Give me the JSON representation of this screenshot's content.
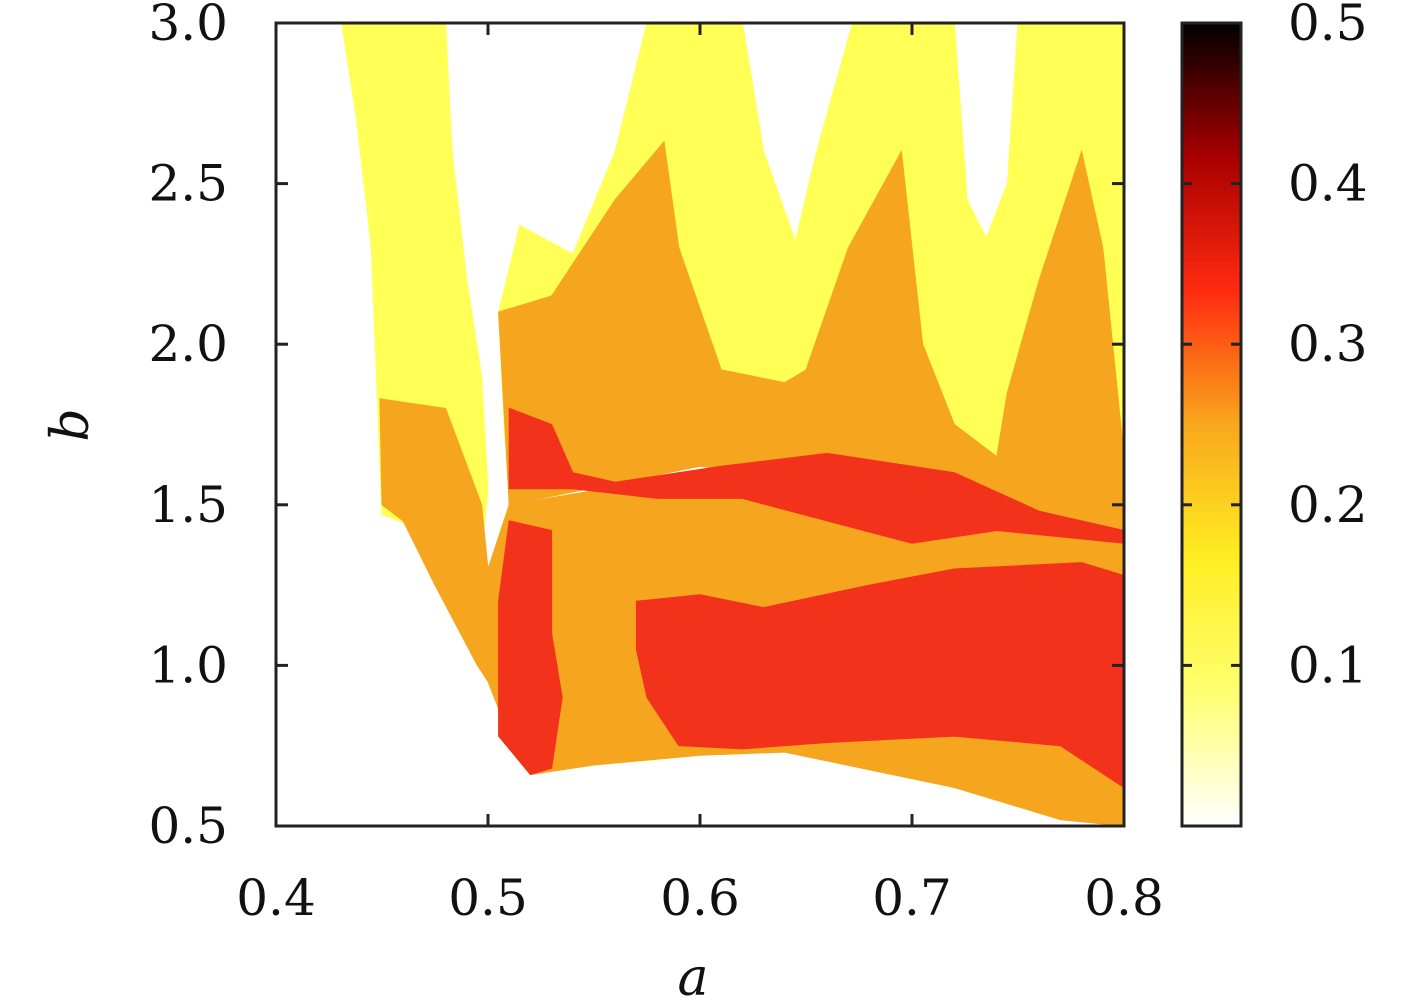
{
  "chart_data": {
    "type": "heatmap",
    "xlabel": "a",
    "ylabel": "b",
    "xlim": [
      0.4,
      0.8
    ],
    "ylim": [
      0.5,
      3.0
    ],
    "x_ticks": [
      "0.4",
      "0.5",
      "0.6",
      "0.7",
      "0.8"
    ],
    "y_ticks": [
      "0.5",
      "1.0",
      "1.5",
      "2.0",
      "2.5",
      "3.0"
    ],
    "colorbar": {
      "range": [
        0,
        0.5
      ],
      "ticks": [
        "0.1",
        "0.2",
        "0.3",
        "0.4",
        "0.5"
      ],
      "colormap": [
        "#ffffff",
        "#ffff70",
        "#ffee22",
        "#f9a71c",
        "#ff2a10",
        "#a80000",
        "#000000"
      ]
    },
    "level_colors": {
      "0.0": "#ffffff",
      "0.1": "#ffff55",
      "0.2": "#f6a51f",
      "0.3": "#f2321a"
    },
    "regions": [
      {
        "value": 0.1,
        "description": "yellow wavy band",
        "polygon": [
          [
            0.431,
            3.0
          ],
          [
            0.48,
            3.0
          ],
          [
            0.483,
            2.6
          ],
          [
            0.49,
            2.2
          ],
          [
            0.497,
            1.9
          ],
          [
            0.5,
            1.55
          ],
          [
            0.497,
            1.35
          ],
          [
            0.45,
            1.47
          ],
          [
            0.448,
            1.8
          ],
          [
            0.445,
            2.3
          ],
          [
            0.438,
            2.7
          ]
        ]
      },
      {
        "value": 0.1,
        "polygon": [
          [
            0.508,
            1.7
          ],
          [
            0.505,
            2.1
          ],
          [
            0.515,
            2.37
          ],
          [
            0.54,
            2.28
          ],
          [
            0.56,
            2.6
          ],
          [
            0.575,
            3.0
          ],
          [
            0.62,
            3.0
          ],
          [
            0.63,
            2.6
          ],
          [
            0.645,
            2.32
          ],
          [
            0.655,
            2.6
          ],
          [
            0.672,
            3.0
          ],
          [
            0.72,
            3.0
          ],
          [
            0.726,
            2.45
          ],
          [
            0.735,
            2.33
          ],
          [
            0.745,
            2.5
          ],
          [
            0.75,
            3.0
          ],
          [
            0.8,
            3.0
          ],
          [
            0.8,
            1.65
          ],
          [
            0.76,
            1.55
          ],
          [
            0.7,
            1.62
          ],
          [
            0.6,
            1.72
          ],
          [
            0.55,
            1.72
          ]
        ]
      },
      {
        "value": 0.2,
        "description": "orange fingers",
        "polygon": [
          [
            0.505,
            2.1
          ],
          [
            0.53,
            2.15
          ],
          [
            0.56,
            2.45
          ],
          [
            0.583,
            2.63
          ],
          [
            0.59,
            2.3
          ],
          [
            0.61,
            1.92
          ],
          [
            0.64,
            1.88
          ],
          [
            0.65,
            1.92
          ],
          [
            0.67,
            2.3
          ],
          [
            0.695,
            2.6
          ],
          [
            0.7,
            2.3
          ],
          [
            0.705,
            2.0
          ],
          [
            0.72,
            1.75
          ],
          [
            0.74,
            1.65
          ],
          [
            0.745,
            1.85
          ],
          [
            0.76,
            2.2
          ],
          [
            0.78,
            2.6
          ],
          [
            0.79,
            2.3
          ],
          [
            0.8,
            1.65
          ],
          [
            0.8,
            1.4
          ],
          [
            0.7,
            1.55
          ],
          [
            0.6,
            1.62
          ],
          [
            0.51,
            1.5
          ]
        ]
      },
      {
        "value": 0.2,
        "polygon": [
          [
            0.449,
            1.83
          ],
          [
            0.48,
            1.8
          ],
          [
            0.497,
            1.5
          ],
          [
            0.5,
            1.3
          ],
          [
            0.51,
            1.5
          ],
          [
            0.6,
            1.6
          ],
          [
            0.7,
            1.5
          ],
          [
            0.8,
            1.38
          ],
          [
            0.8,
            0.5
          ],
          [
            0.77,
            0.52
          ],
          [
            0.72,
            0.62
          ],
          [
            0.64,
            0.73
          ],
          [
            0.6,
            0.72
          ],
          [
            0.55,
            0.69
          ],
          [
            0.52,
            0.66
          ],
          [
            0.51,
            0.78
          ],
          [
            0.5,
            0.95
          ],
          [
            0.495,
            1.0
          ],
          [
            0.475,
            1.25
          ],
          [
            0.46,
            1.45
          ],
          [
            0.45,
            1.5
          ]
        ]
      },
      {
        "value": 0.3,
        "description": "red noisy core",
        "polygon": [
          [
            0.51,
            1.45
          ],
          [
            0.53,
            1.42
          ],
          [
            0.53,
            1.1
          ],
          [
            0.535,
            0.9
          ],
          [
            0.53,
            0.68
          ],
          [
            0.52,
            0.66
          ],
          [
            0.505,
            0.78
          ],
          [
            0.505,
            1.2
          ]
        ]
      },
      {
        "value": 0.3,
        "polygon": [
          [
            0.57,
            1.2
          ],
          [
            0.6,
            1.22
          ],
          [
            0.63,
            1.18
          ],
          [
            0.68,
            1.25
          ],
          [
            0.72,
            1.3
          ],
          [
            0.78,
            1.32
          ],
          [
            0.8,
            1.28
          ],
          [
            0.8,
            0.62
          ],
          [
            0.77,
            0.75
          ],
          [
            0.72,
            0.78
          ],
          [
            0.66,
            0.76
          ],
          [
            0.62,
            0.74
          ],
          [
            0.59,
            0.75
          ],
          [
            0.575,
            0.9
          ],
          [
            0.57,
            1.05
          ]
        ]
      },
      {
        "value": 0.3,
        "polygon": [
          [
            0.51,
            1.8
          ],
          [
            0.53,
            1.75
          ],
          [
            0.54,
            1.6
          ],
          [
            0.56,
            1.57
          ],
          [
            0.61,
            1.62
          ],
          [
            0.66,
            1.66
          ],
          [
            0.72,
            1.6
          ],
          [
            0.76,
            1.48
          ],
          [
            0.8,
            1.42
          ],
          [
            0.8,
            1.38
          ],
          [
            0.74,
            1.42
          ],
          [
            0.7,
            1.38
          ],
          [
            0.66,
            1.45
          ],
          [
            0.62,
            1.52
          ],
          [
            0.58,
            1.52
          ],
          [
            0.54,
            1.55
          ],
          [
            0.51,
            1.55
          ]
        ]
      }
    ]
  }
}
